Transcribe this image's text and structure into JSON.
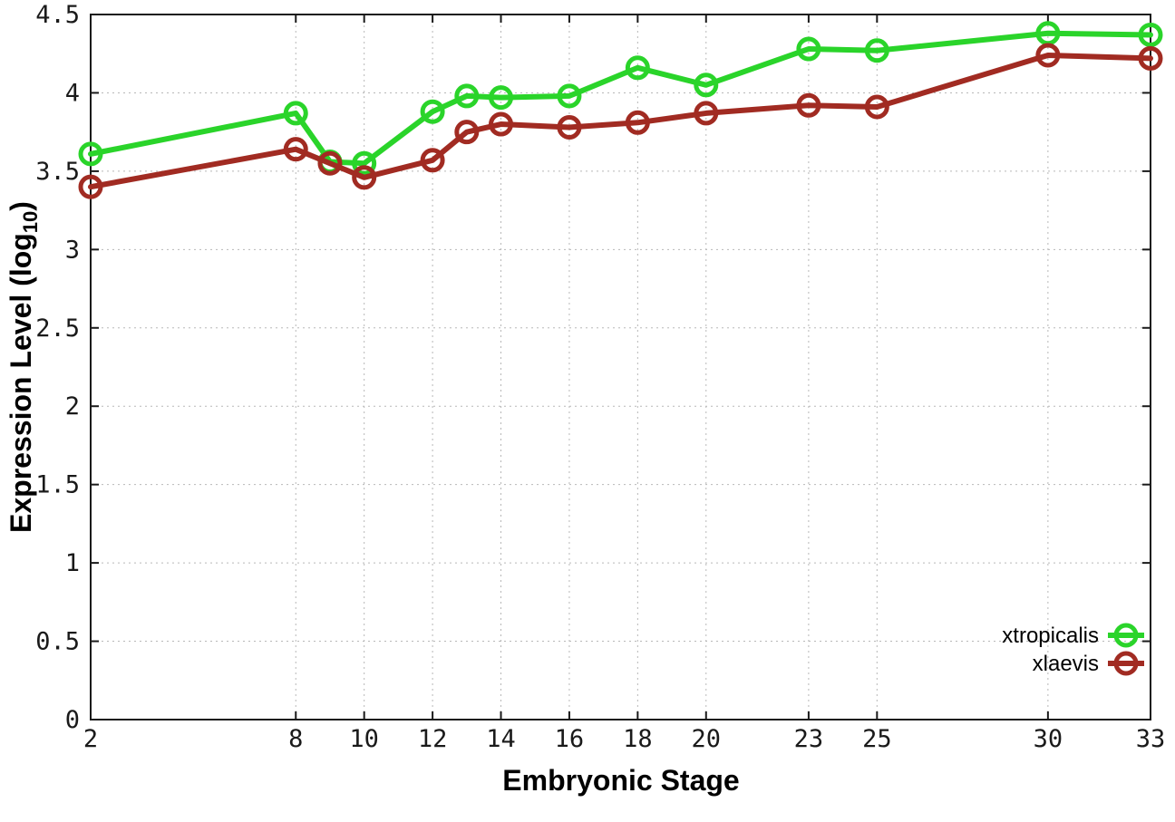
{
  "chart_data": {
    "type": "line",
    "title": "",
    "xlabel": "Embryonic Stage",
    "ylabel": "Expression Level (log10)",
    "ylabel_main": "Expression Level (log",
    "ylabel_sub": "10",
    "ylabel_close": ")",
    "xlim": [
      2,
      33
    ],
    "ylim": [
      0,
      4.5
    ],
    "x_ticks": [
      2,
      8,
      10,
      12,
      14,
      16,
      18,
      20,
      23,
      25,
      30,
      33
    ],
    "x_tick_labels": [
      "2",
      "8",
      "10",
      "12",
      "14",
      "16",
      "18",
      "20",
      "23",
      "25",
      "30",
      "33"
    ],
    "y_ticks": [
      0,
      0.5,
      1,
      1.5,
      2,
      2.5,
      3,
      3.5,
      4,
      4.5
    ],
    "y_tick_labels": [
      "0",
      "0.5",
      "1",
      "1.5",
      "2",
      "2.5",
      "3",
      "3.5",
      "4",
      "4.5"
    ],
    "grid": true,
    "legend_position": "bottom-right-inside",
    "x": [
      2,
      8,
      9,
      10,
      12,
      13,
      14,
      16,
      18,
      20,
      23,
      25,
      30,
      33
    ],
    "series": [
      {
        "name": "xtropicalis",
        "color": "#2ad42a",
        "marker": "open-circle",
        "values": [
          3.61,
          3.87,
          3.56,
          3.55,
          3.88,
          3.98,
          3.97,
          3.98,
          4.16,
          4.05,
          4.28,
          4.27,
          4.38,
          4.37
        ]
      },
      {
        "name": "xlaevis",
        "color": "#a12b22",
        "marker": "open-circle",
        "values": [
          3.4,
          3.64,
          3.55,
          3.46,
          3.57,
          3.75,
          3.8,
          3.78,
          3.81,
          3.87,
          3.92,
          3.91,
          4.24,
          4.22
        ]
      }
    ]
  },
  "colors": {
    "background": "#ffffff",
    "border": "#1a1a1a",
    "grid": "#b8b8b8",
    "text": "#1a1a1a"
  }
}
